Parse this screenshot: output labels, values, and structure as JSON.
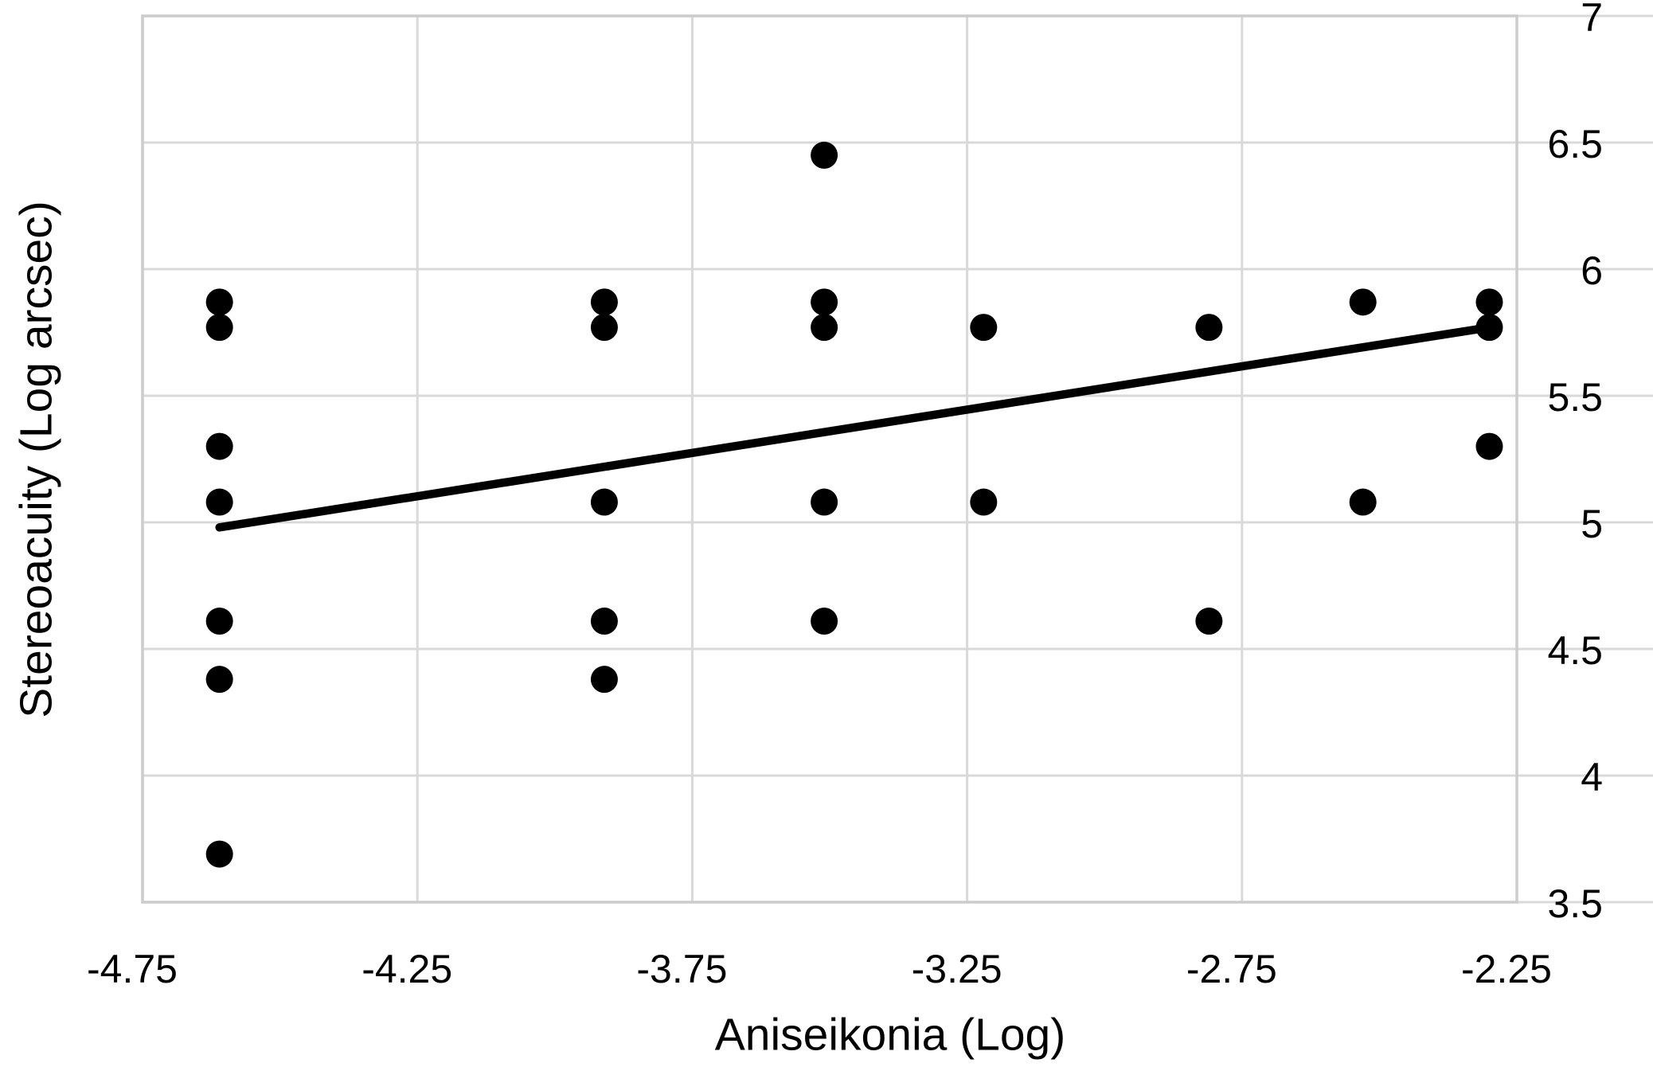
{
  "figure": {
    "x_axis_title": "Aniseikonia (Log)",
    "y_axis_title": "Stereoacuity (Log arcsec)"
  },
  "colors": {
    "background": "#ffffff",
    "marker": "#000000",
    "trend_line": "#000000",
    "gridline": "#d9d9d9",
    "plot_border": "#cccccc",
    "text": "#000000"
  },
  "chart_data": {
    "type": "scatter",
    "title": "",
    "xlabel": "Aniseikonia (Log)",
    "ylabel": "Stereoacuity (Log arcsec)",
    "xlim": [
      -4.75,
      -2.25
    ],
    "ylim": [
      3.5,
      7
    ],
    "grid": true,
    "legend": false,
    "x_ticks": [
      -4.75,
      -4.25,
      -3.75,
      -3.25,
      -2.75,
      -2.25
    ],
    "x_tick_labels": [
      "-4.75",
      "-4.25",
      "-3.75",
      "-3.25",
      "-2.75",
      "-2.25"
    ],
    "y_ticks": [
      7,
      6.5,
      6,
      5.5,
      5,
      4.5,
      4,
      3.5
    ],
    "y_tick_labels": [
      "7",
      "6.5",
      "6",
      "5.5",
      "5",
      "4.5",
      "4",
      "3.5"
    ],
    "y_tick_side": "right",
    "marker_radius_px": 17,
    "points": [
      {
        "x": -4.61,
        "y": 5.87
      },
      {
        "x": -4.61,
        "y": 5.77
      },
      {
        "x": -4.61,
        "y": 5.3
      },
      {
        "x": -4.61,
        "y": 5.08
      },
      {
        "x": -4.61,
        "y": 4.61
      },
      {
        "x": -4.61,
        "y": 4.38
      },
      {
        "x": -4.61,
        "y": 3.69
      },
      {
        "x": -3.91,
        "y": 5.87
      },
      {
        "x": -3.91,
        "y": 5.77
      },
      {
        "x": -3.91,
        "y": 5.08
      },
      {
        "x": -3.91,
        "y": 4.61
      },
      {
        "x": -3.91,
        "y": 4.38
      },
      {
        "x": -3.51,
        "y": 6.45
      },
      {
        "x": -3.51,
        "y": 5.87
      },
      {
        "x": -3.51,
        "y": 5.77
      },
      {
        "x": -3.51,
        "y": 5.08
      },
      {
        "x": -3.51,
        "y": 4.61
      },
      {
        "x": -3.22,
        "y": 5.77
      },
      {
        "x": -3.22,
        "y": 5.08
      },
      {
        "x": -2.81,
        "y": 5.77
      },
      {
        "x": -2.81,
        "y": 4.61
      },
      {
        "x": -2.53,
        "y": 5.87
      },
      {
        "x": -2.53,
        "y": 5.08
      },
      {
        "x": -2.3,
        "y": 5.87
      },
      {
        "x": -2.3,
        "y": 5.77
      },
      {
        "x": -2.3,
        "y": 5.3
      }
    ],
    "trend_line": {
      "x1": -4.61,
      "y1": 4.98,
      "x2": -2.3,
      "y2": 5.77
    }
  }
}
